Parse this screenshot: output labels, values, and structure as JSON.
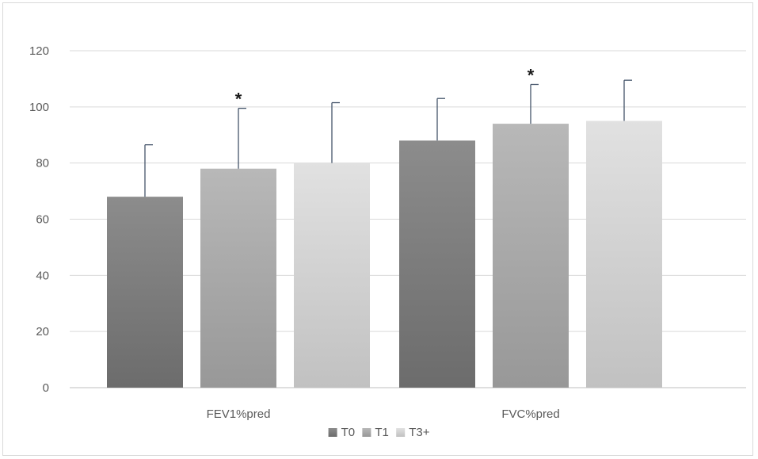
{
  "chart_data": {
    "type": "bar",
    "categories": [
      "FEV1%pred",
      "FVC%pred"
    ],
    "series": [
      {
        "name": "T0",
        "values": [
          68,
          88
        ],
        "error": [
          18.5,
          15
        ],
        "color": "#7a7a7a"
      },
      {
        "name": "T1",
        "values": [
          78,
          94
        ],
        "error": [
          21.5,
          14
        ],
        "color": "#a6a6a6"
      },
      {
        "name": "T3+",
        "values": [
          80,
          95
        ],
        "error": [
          21.5,
          14.5
        ],
        "color": "#cfcfcf"
      }
    ],
    "annotations": [
      {
        "text": "*",
        "category": "FEV1%pred",
        "series": "T1"
      },
      {
        "text": "*",
        "category": "FVC%pred",
        "series": "T1"
      }
    ],
    "ylim": [
      0,
      120
    ],
    "yticks": [
      "0",
      "20",
      "40",
      "60",
      "80",
      "100",
      "120"
    ],
    "grid": true,
    "legend_position": "bottom",
    "title": "",
    "xlabel": "",
    "ylabel": ""
  }
}
